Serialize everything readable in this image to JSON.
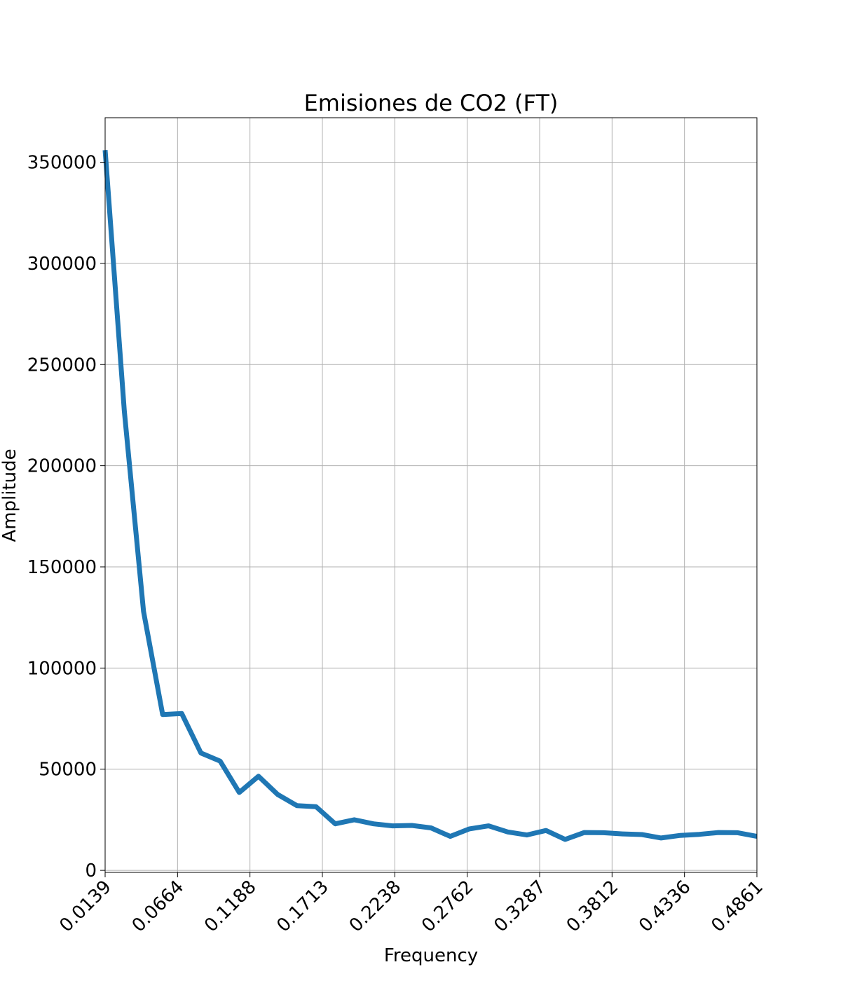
{
  "chart_data": {
    "type": "line",
    "title": "Emisiones de CO2 (FT)",
    "xlabel": "Frequency",
    "ylabel": "Amplitude",
    "xlim": [
      0.0139,
      0.4861
    ],
    "ylim": [
      -1000,
      372000
    ],
    "grid": true,
    "x_ticks": [
      "0.0139",
      "0.0664",
      "0.1188",
      "0.1713",
      "0.2238",
      "0.2762",
      "0.3287",
      "0.3812",
      "0.4336",
      "0.4861"
    ],
    "y_ticks": [
      {
        "value": 0,
        "label": "0"
      },
      {
        "value": 50000,
        "label": "50000"
      },
      {
        "value": 100000,
        "label": "100000"
      },
      {
        "value": 150000,
        "label": "150000"
      },
      {
        "value": 200000,
        "label": "200000"
      },
      {
        "value": 250000,
        "label": "250000"
      },
      {
        "value": 300000,
        "label": "300000"
      },
      {
        "value": 350000,
        "label": "350000"
      }
    ],
    "series": [
      {
        "color": "#1f77b4",
        "x": [
          0.0139,
          0.0278,
          0.0417,
          0.0556,
          0.0694,
          0.0833,
          0.0972,
          0.1111,
          0.125,
          0.1389,
          0.1528,
          0.1667,
          0.1806,
          0.1944,
          0.2083,
          0.2222,
          0.2361,
          0.25,
          0.2639,
          0.2778,
          0.2917,
          0.3056,
          0.3194,
          0.3333,
          0.3472,
          0.3611,
          0.375,
          0.3889,
          0.4028,
          0.4167,
          0.4306,
          0.4444,
          0.4583,
          0.4722,
          0.4861
        ],
        "y": [
          356000,
          227000,
          128000,
          77000,
          77500,
          58000,
          54000,
          38500,
          46500,
          37500,
          32000,
          31500,
          23000,
          25000,
          23000,
          22000,
          22200,
          21000,
          16800,
          20500,
          22000,
          19000,
          17500,
          19700,
          15300,
          18700,
          18600,
          18000,
          17700,
          16000,
          17300,
          17800,
          18700,
          18600,
          16800
        ]
      }
    ]
  }
}
